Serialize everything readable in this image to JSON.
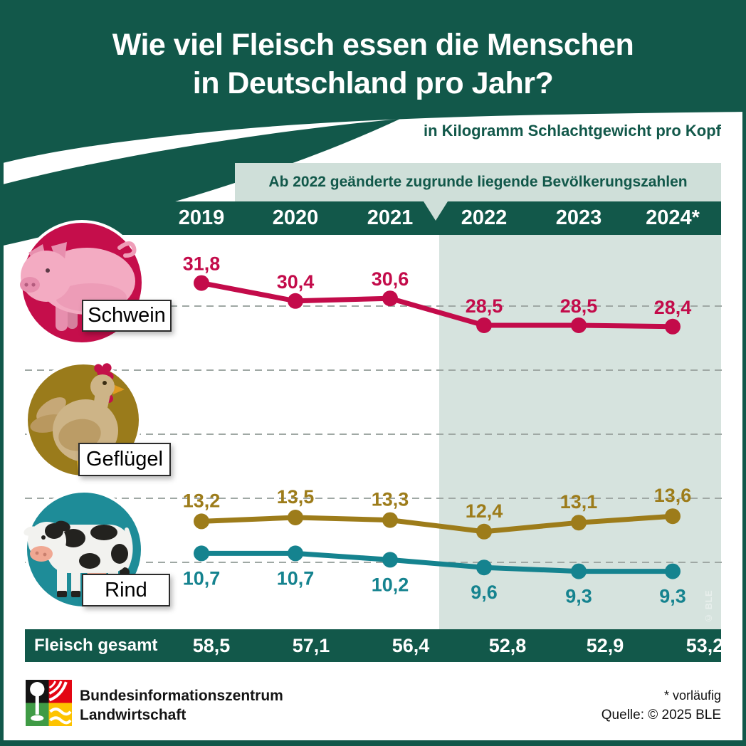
{
  "header": {
    "title_line1": "Wie viel Fleisch essen die Menschen",
    "title_line2": "in Deutschland pro Jahr?",
    "subtitle": "in Kilogramm Schlachtgewicht pro Kopf"
  },
  "note": {
    "text": "Ab 2022 geänderte zugrunde liegende Bevölkerungszahlen"
  },
  "chart_data": {
    "type": "line",
    "title": "Wie viel Fleisch essen die Menschen in Deutschland pro Jahr?",
    "unit": "Kilogramm Schlachtgewicht pro Kopf",
    "categories": [
      "2019",
      "2020",
      "2021",
      "2022",
      "2023",
      "2024*"
    ],
    "series": [
      {
        "key": "schwein",
        "name": "Schwein",
        "color": "#c30b4a",
        "values": [
          31.8,
          30.4,
          30.6,
          28.5,
          28.5,
          28.4
        ],
        "labels": [
          "31,8",
          "30,4",
          "30,6",
          "28,5",
          "28,5",
          "28,4"
        ],
        "label_position": "above"
      },
      {
        "key": "gefluegel",
        "name": "Geflügel",
        "color": "#9d7c1a",
        "values": [
          13.2,
          13.5,
          13.3,
          12.4,
          13.1,
          13.6
        ],
        "labels": [
          "13,2",
          "13,5",
          "13,3",
          "12,4",
          "13,1",
          "13,6"
        ],
        "label_position": "above"
      },
      {
        "key": "rind",
        "name": "Rind",
        "color": "#15838f",
        "values": [
          10.7,
          10.7,
          10.2,
          9.6,
          9.3,
          9.3
        ],
        "labels": [
          "10,7",
          "10,7",
          "10,2",
          "9,6",
          "9,3",
          "9,3"
        ],
        "label_position": "below"
      }
    ],
    "gridline_values": [
      30,
      25,
      20,
      15,
      10
    ],
    "grid": "dashed-horizontal",
    "highlight_from_category": "2022",
    "total_row": {
      "label": "Fleisch gesamt",
      "values": [
        "58,5",
        "57,1",
        "56,4",
        "52,8",
        "52,9",
        "53,2"
      ]
    }
  },
  "watermark": "© BLE",
  "footer": {
    "org_line1": "Bundesinformationszentrum",
    "org_line2": "Landwirtschaft",
    "footnote": "* vorläufig",
    "source": "Quelle: © 2025 BLE"
  },
  "colors": {
    "brand_green": "#12584a",
    "highlight_bg": "#d6e3de",
    "note_bg": "#cfdfd9",
    "gridline": "#9fa8a4",
    "logo_black": "#141414",
    "logo_red": "#e30613",
    "logo_green": "#3f9b45",
    "logo_yellow": "#fdc300"
  }
}
